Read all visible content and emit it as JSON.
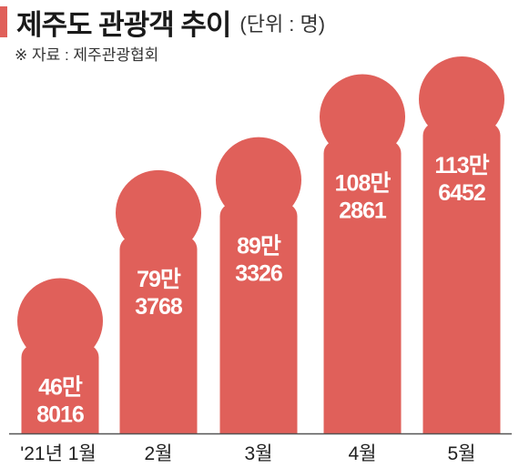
{
  "title": "제주도 관광객 추이",
  "unit": "(단위 : 명)",
  "source": "※ 자료 : 제주관광협회",
  "colors": {
    "bar": "#e0605a",
    "accent": "#e0605a",
    "axis": "#555555"
  },
  "chart_data": {
    "type": "bar",
    "title": "제주도 관광객 추이",
    "unit": "명",
    "categories": [
      "'21년 1월",
      "2월",
      "3월",
      "4월",
      "5월"
    ],
    "values": [
      468016,
      793768,
      893326,
      1082861,
      1136452
    ],
    "data_labels": [
      [
        "46만",
        "8016"
      ],
      [
        "79만",
        "3768"
      ],
      [
        "89만",
        "3326"
      ],
      [
        "108만",
        "2861"
      ],
      [
        "113만",
        "6452"
      ]
    ],
    "ylim": [
      0,
      1136452
    ],
    "grid": false,
    "legend": "none"
  }
}
